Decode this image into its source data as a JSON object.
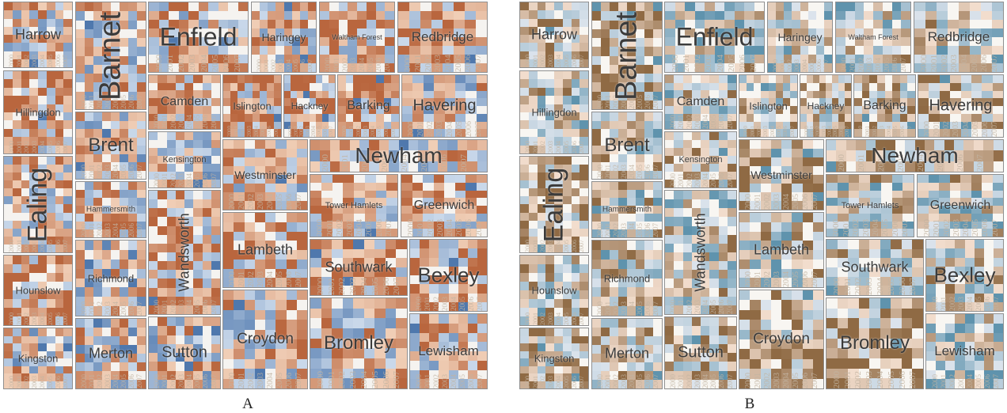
{
  "panels": [
    {
      "id": "A",
      "caption": "A",
      "scheme": "strong"
    },
    {
      "id": "B",
      "caption": "B",
      "scheme": "faint"
    }
  ],
  "years": [
    "2000",
    "2001",
    "2002",
    "2003",
    "2004",
    "2005",
    "2006",
    "2007"
  ],
  "colors": {
    "blue_dark": "#4f78ad",
    "blue_light": "#c9d8ea",
    "neutral": "#f5f3f0",
    "orange_light": "#f0ceb6",
    "orange_dark": "#b9663e",
    "teal_dark": "#5f93ad",
    "brown_dark": "#8f6a44",
    "border": "#8f8f8f"
  },
  "boroughs": [
    {
      "name": "Harrow"
    },
    {
      "name": "Barnet"
    },
    {
      "name": "Enfield"
    },
    {
      "name": "Haringey"
    },
    {
      "name": "Waltham Forest"
    },
    {
      "name": "Redbridge"
    },
    {
      "name": "Hillingdon"
    },
    {
      "name": "Camden"
    },
    {
      "name": "Islington"
    },
    {
      "name": "Hackney"
    },
    {
      "name": "Barking"
    },
    {
      "name": "Havering"
    },
    {
      "name": "Brent"
    },
    {
      "name": "Kensington"
    },
    {
      "name": "Westminster"
    },
    {
      "name": "Newham"
    },
    {
      "name": "Ealing"
    },
    {
      "name": "Hammersmith"
    },
    {
      "name": "Tower Hamlets"
    },
    {
      "name": "Greenwich"
    },
    {
      "name": "Wandsworth"
    },
    {
      "name": "Lambeth"
    },
    {
      "name": "Southwark"
    },
    {
      "name": "Bexley"
    },
    {
      "name": "Hounslow"
    },
    {
      "name": "Richmond"
    },
    {
      "name": "Kingston"
    },
    {
      "name": "Merton"
    },
    {
      "name": "Sutton"
    },
    {
      "name": "Croydon"
    },
    {
      "name": "Bromley"
    },
    {
      "name": "Lewisham"
    }
  ]
}
